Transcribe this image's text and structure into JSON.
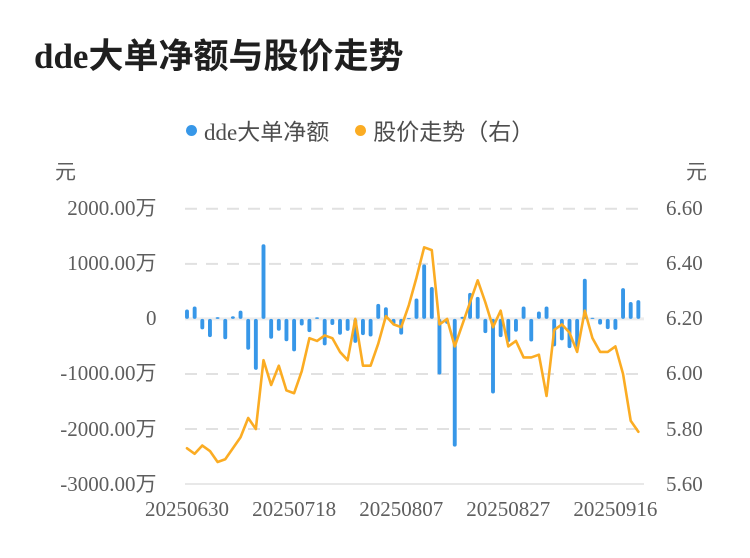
{
  "title": "dde大单净额与股价走势",
  "legend": [
    {
      "label": "dde大单净额",
      "color": "#3797e8"
    },
    {
      "label": "股价走势（右）",
      "color": "#fbac23"
    }
  ],
  "axes": {
    "left": {
      "unit": "元",
      "ticks": [
        "2000.00万",
        "1000.00万",
        "0",
        "-1000.00万",
        "-2000.00万",
        "-3000.00万"
      ]
    },
    "right": {
      "unit": "元",
      "ticks": [
        "6.60",
        "6.40",
        "6.20",
        "6.00",
        "5.80",
        "5.60"
      ]
    },
    "x": {
      "ticks": [
        "20250630",
        "20250718",
        "20250807",
        "20250827",
        "20250916"
      ]
    }
  },
  "chart_data": {
    "type": "bar+line",
    "title": "dde大单净额与股价走势",
    "x": [
      "20250630",
      "20250701",
      "20250702",
      "20250703",
      "20250704",
      "20250707",
      "20250708",
      "20250709",
      "20250710",
      "20250711",
      "20250714",
      "20250715",
      "20250716",
      "20250717",
      "20250718",
      "20250721",
      "20250722",
      "20250723",
      "20250724",
      "20250725",
      "20250728",
      "20250729",
      "20250730",
      "20250731",
      "20250801",
      "20250804",
      "20250805",
      "20250806",
      "20250807",
      "20250808",
      "20250811",
      "20250812",
      "20250813",
      "20250814",
      "20250815",
      "20250818",
      "20250819",
      "20250820",
      "20250821",
      "20250822",
      "20250825",
      "20250826",
      "20250827",
      "20250828",
      "20250829",
      "20250901",
      "20250902",
      "20250903",
      "20250904",
      "20250905",
      "20250908",
      "20250909",
      "20250910",
      "20250911",
      "20250912",
      "20250915",
      "20250916",
      "20250917",
      "20250918",
      "20250919"
    ],
    "series": [
      {
        "name": "dde大单净额",
        "type": "bar",
        "axis": "left",
        "unit": "万元",
        "color": "#3797e8",
        "values": [
          170,
          225,
          -190,
          -330,
          33,
          -370,
          49,
          150,
          -560,
          -925,
          1355,
          -360,
          -215,
          -405,
          -590,
          -120,
          -240,
          29,
          -480,
          -110,
          -288,
          -217,
          -435,
          -294,
          -320,
          272,
          211,
          -100,
          -285,
          15,
          370,
          990,
          580,
          -1010,
          -90,
          -2320,
          40,
          472,
          400,
          -258,
          -1355,
          -332,
          -420,
          -234,
          225,
          -410,
          135,
          225,
          -500,
          -390,
          -530,
          -520,
          730,
          20,
          -105,
          -185,
          -200,
          560,
          307,
          341
        ]
      },
      {
        "name": "股价走势（右）",
        "type": "line",
        "axis": "right",
        "unit": "元",
        "color": "#fbac23",
        "values": [
          5.73,
          5.71,
          5.74,
          5.72,
          5.68,
          5.69,
          5.73,
          5.77,
          5.84,
          5.8,
          6.05,
          5.96,
          6.03,
          5.94,
          5.93,
          6.01,
          6.13,
          6.12,
          6.14,
          6.13,
          6.08,
          6.05,
          6.2,
          6.03,
          6.03,
          6.11,
          6.21,
          6.18,
          6.17,
          6.25,
          6.35,
          6.46,
          6.45,
          6.18,
          6.2,
          6.1,
          6.18,
          6.26,
          6.34,
          6.26,
          6.17,
          6.23,
          6.1,
          6.12,
          6.06,
          6.06,
          6.07,
          5.92,
          6.16,
          6.18,
          6.15,
          6.08,
          6.23,
          6.13,
          6.08,
          6.08,
          6.1,
          6.0,
          5.83,
          5.79
        ]
      }
    ],
    "ylim_left": [
      -3000,
      2000
    ],
    "ylim_right": [
      5.6,
      6.6
    ],
    "ylabel_left": "元",
    "ylabel_right": "元",
    "x_tick_labels": [
      "20250630",
      "20250718",
      "20250807",
      "20250827",
      "20250916"
    ],
    "x_tick_indices": [
      0,
      14,
      28,
      42,
      56
    ],
    "grid": "dashed-horizontal",
    "legend_position": "top-center"
  }
}
